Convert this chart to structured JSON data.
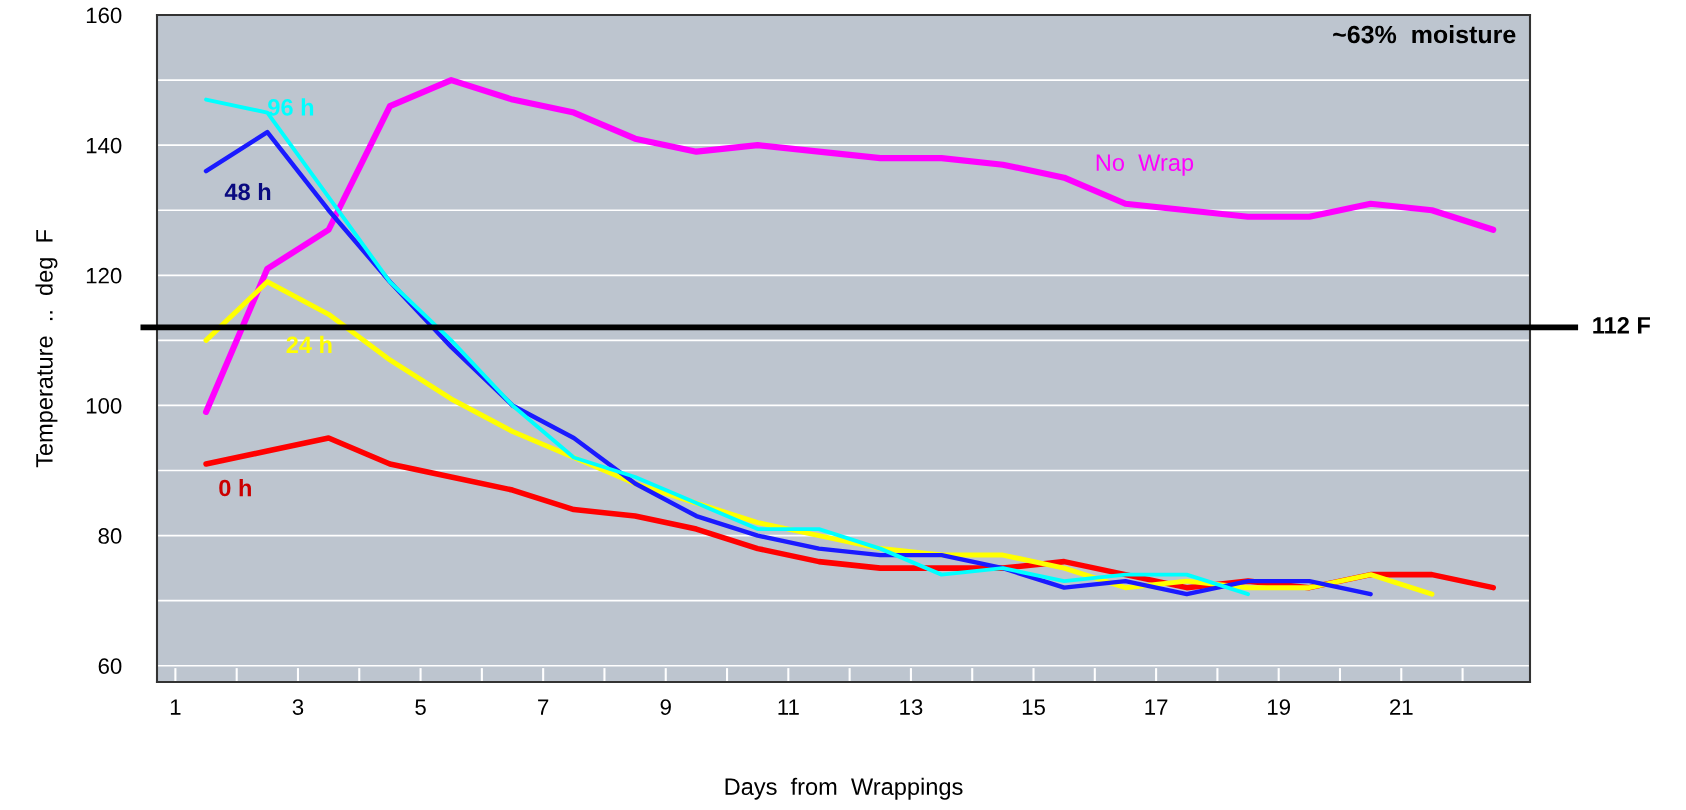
{
  "chart_data": {
    "type": "line",
    "xlabel": "Days  from  Wrappings",
    "ylabel": "Temperature  ..  deg  F",
    "x": [
      1.5,
      2.5,
      3.5,
      4.5,
      5.5,
      6.5,
      7.5,
      8.5,
      9.5,
      10.5,
      11.5,
      12.5,
      13.5,
      14.5,
      15.5,
      16.5,
      17.5,
      18.5,
      19.5,
      20.5,
      21.5,
      22.5
    ],
    "series": [
      {
        "name": "No  Wrap",
        "color": "#ff00ff",
        "values": [
          99,
          121,
          127,
          146,
          150,
          147,
          145,
          141,
          139,
          140,
          139,
          138,
          138,
          137,
          135,
          131,
          130,
          129,
          129,
          131,
          130,
          127
        ]
      },
      {
        "name": "0 h",
        "color": "#ff0000",
        "values": [
          91,
          93,
          95,
          91,
          89,
          87,
          84,
          83,
          81,
          78,
          76,
          75,
          75,
          75,
          76,
          74,
          72,
          73,
          72,
          74,
          74,
          72
        ]
      },
      {
        "name": "24 h",
        "color": "#ffff00",
        "values": [
          110,
          119,
          114,
          107,
          101,
          96,
          92,
          88,
          85,
          82,
          80,
          78,
          77,
          77,
          75,
          72,
          73,
          72,
          72,
          74,
          71,
          null
        ]
      },
      {
        "name": "48 h",
        "color": "#1a1aff",
        "values": [
          136,
          142,
          130,
          119,
          109,
          100,
          95,
          88,
          83,
          80,
          78,
          77,
          77,
          75,
          72,
          73,
          71,
          73,
          73,
          71,
          null,
          null
        ]
      },
      {
        "name": "96 h",
        "color": "#00ffff",
        "values": [
          147,
          145,
          132,
          119,
          110,
          100,
          92,
          89,
          85,
          81,
          81,
          78,
          74,
          75,
          73,
          74,
          74,
          71,
          null,
          null,
          null,
          null
        ]
      }
    ],
    "xlim": [
      0.7,
      23.1
    ],
    "ylim": [
      57.5,
      160
    ],
    "xticks": [
      1,
      {
        "value": 2,
        "label": null
      },
      3,
      {
        "value": 4,
        "label": null
      },
      5,
      {
        "value": 6,
        "label": null
      },
      7,
      {
        "value": 8,
        "label": null
      },
      9,
      {
        "value": 10,
        "label": null
      },
      11,
      {
        "value": 12,
        "label": null
      },
      13,
      {
        "value": 14,
        "label": null
      },
      15,
      {
        "value": 16,
        "label": null
      },
      17,
      {
        "value": 18,
        "label": null
      },
      19,
      {
        "value": 20,
        "label": null
      },
      21,
      {
        "value": 22,
        "label": null
      }
    ],
    "yticks": [
      60,
      {
        "value": 70,
        "label": null
      },
      80,
      {
        "value": 90,
        "label": null
      },
      100,
      {
        "value": 110,
        "label": null
      },
      120,
      {
        "value": 130,
        "label": null
      },
      140,
      {
        "value": 150,
        "label": null
      },
      160
    ],
    "ref_lines": [
      {
        "axis": "y",
        "value": 112,
        "label": "112 F",
        "color": "#000000"
      }
    ],
    "annotations": [
      "~63%  moisture"
    ],
    "grid": "y",
    "legend": false,
    "marker": "none",
    "line_style": "solid"
  }
}
